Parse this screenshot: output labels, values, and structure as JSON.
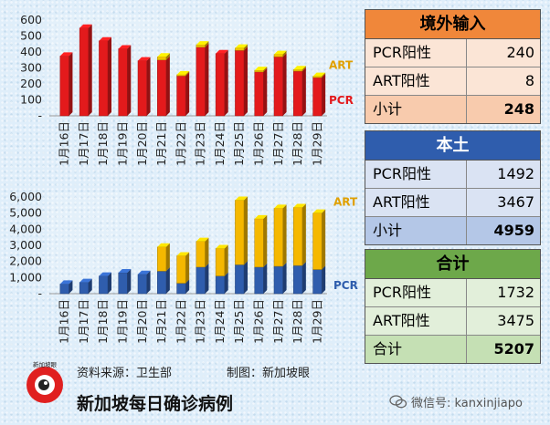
{
  "chart_data": [
    {
      "type": "bar",
      "stacked": true,
      "categories": [
        "1月16日",
        "1月17日",
        "1月18日",
        "1月19日",
        "1月20日",
        "1月21日",
        "1月22日",
        "1月23日",
        "1月24日",
        "1月25日",
        "1月26日",
        "1月27日",
        "1月28日",
        "1月29日"
      ],
      "series": [
        {
          "name": "PCR",
          "values": [
            375,
            550,
            470,
            420,
            345,
            350,
            250,
            430,
            390,
            410,
            275,
            370,
            280,
            240
          ],
          "color": "#e31a1c"
        },
        {
          "name": "ART",
          "values": [
            0,
            0,
            0,
            0,
            0,
            20,
            8,
            15,
            0,
            15,
            10,
            15,
            10,
            8
          ],
          "color": "#f2c200"
        }
      ],
      "ylim": [
        0,
        600
      ],
      "yticks": [
        "-",
        "100",
        "200",
        "300",
        "400",
        "500",
        "600"
      ],
      "legend": "right"
    },
    {
      "type": "bar",
      "stacked": true,
      "categories": [
        "1月16日",
        "1月17日",
        "1月18日",
        "1月19日",
        "1月20日",
        "1月21日",
        "1月22日",
        "1月23日",
        "1月24日",
        "1月25日",
        "1月26日",
        "1月27日",
        "1月28日",
        "1月29日"
      ],
      "series": [
        {
          "name": "PCR",
          "values": [
            600,
            700,
            1100,
            1300,
            1200,
            1400,
            650,
            1650,
            1100,
            1800,
            1650,
            1700,
            1750,
            1500
          ],
          "color": "#2f5dad"
        },
        {
          "name": "ART",
          "values": [
            0,
            0,
            0,
            0,
            0,
            1500,
            1700,
            1600,
            1700,
            4000,
            3000,
            3600,
            3600,
            3500
          ],
          "color": "#f5b800"
        }
      ],
      "ylim": [
        0,
        6000
      ],
      "yticks": [
        "-",
        "1,000",
        "2,000",
        "3,000",
        "4,000",
        "5,000",
        "6,000"
      ],
      "legend": "right"
    }
  ],
  "tables": {
    "imported": {
      "title": "境外输入",
      "rows": [
        {
          "label": "PCR阳性",
          "value": "240"
        },
        {
          "label": "ART阳性",
          "value": "8"
        },
        {
          "label": "小计",
          "value": "248"
        }
      ]
    },
    "local": {
      "title": "本土",
      "rows": [
        {
          "label": "PCR阳性",
          "value": "1492"
        },
        {
          "label": "ART阳性",
          "value": "3467"
        },
        {
          "label": "小计",
          "value": "4959"
        }
      ]
    },
    "total": {
      "title": "合计",
      "rows": [
        {
          "label": "PCR阳性",
          "value": "1732"
        },
        {
          "label": "ART阳性",
          "value": "3475"
        },
        {
          "label": "合计",
          "value": "5207"
        }
      ]
    }
  },
  "footer": {
    "source": "资料来源：卫生部",
    "credit": "制图：新加坡眼",
    "caption": "新加坡每日确诊病例",
    "watermark": "微信号: kanxinjiapo"
  },
  "logo": {
    "text": "新加坡眼"
  }
}
